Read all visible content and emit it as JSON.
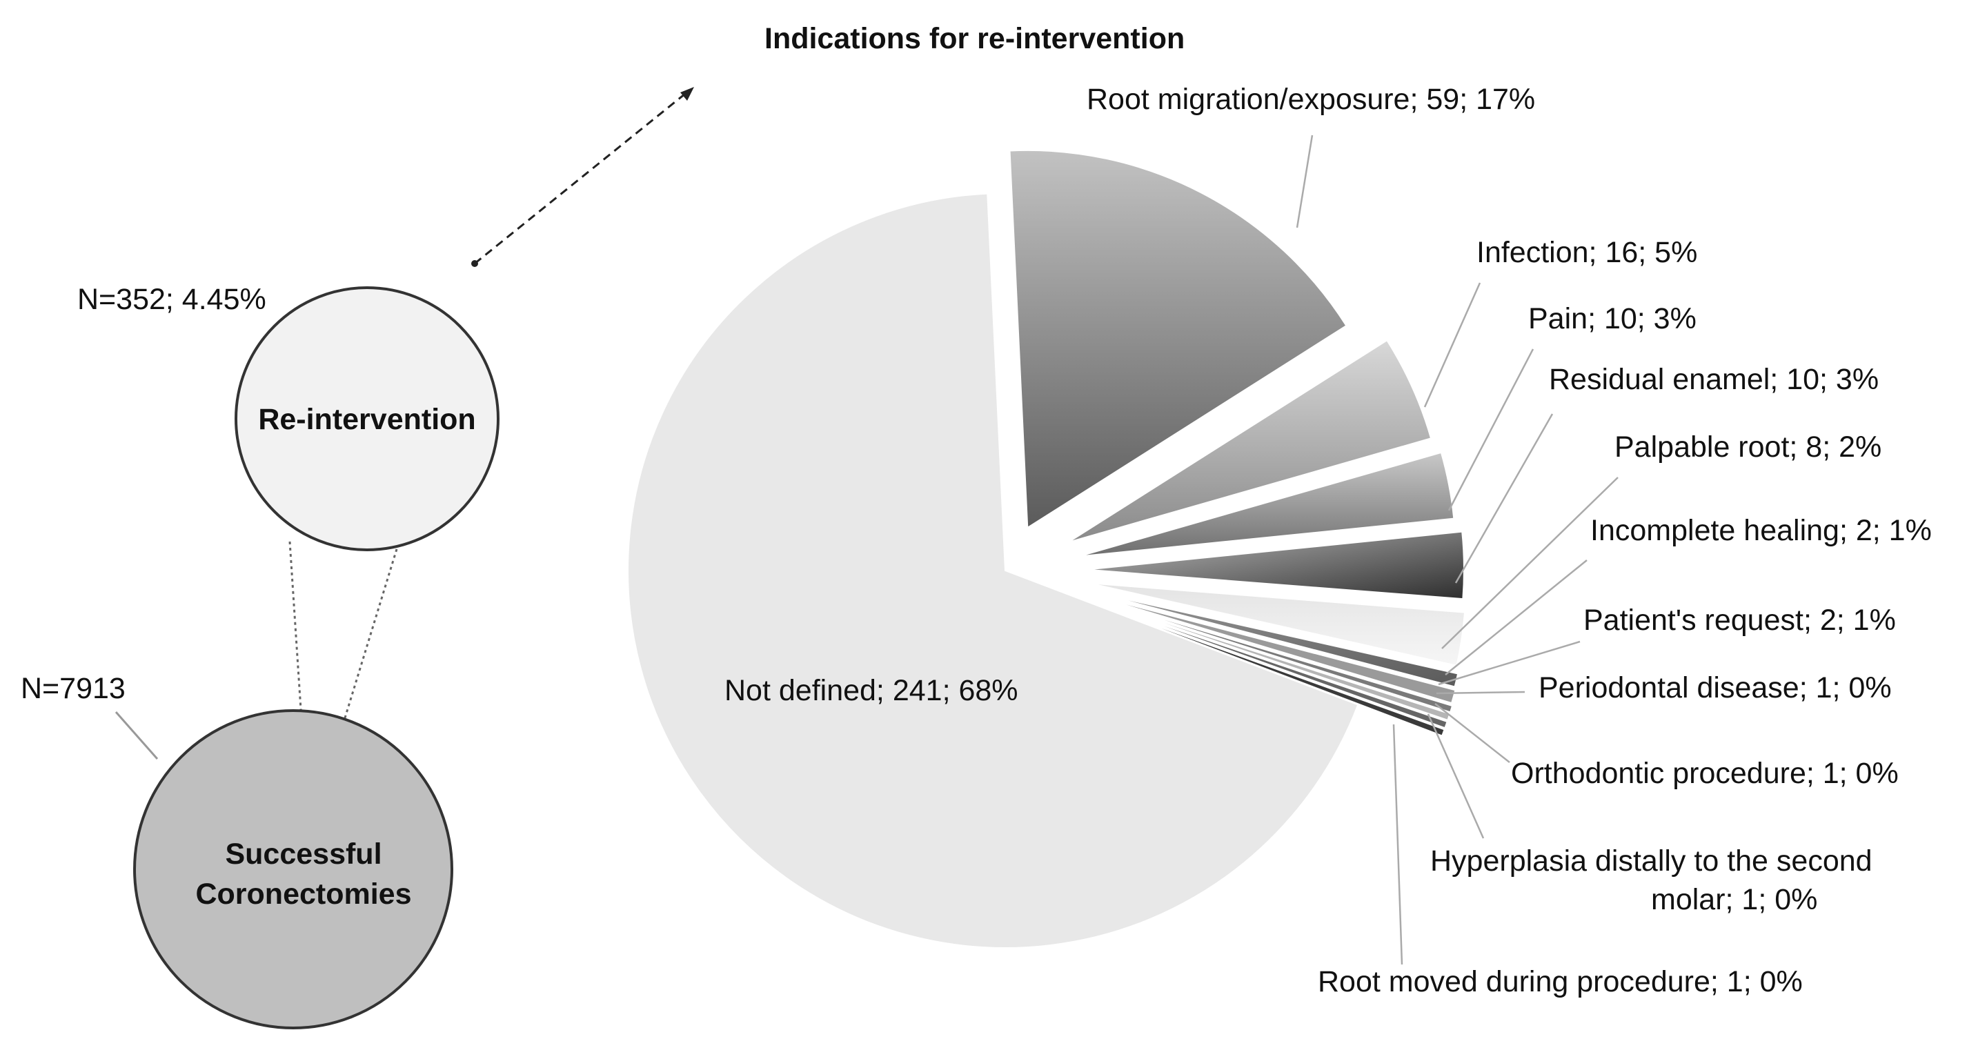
{
  "chart_data": {
    "type": "pie",
    "title": "Indications for re-intervention",
    "slices": [
      {
        "label": "Root migration/exposure; 59; 17%",
        "value": 59,
        "exploded": true
      },
      {
        "label": "Infection; 16; 5%",
        "value": 16,
        "exploded": true
      },
      {
        "label": "Pain; 10; 3%",
        "value": 10,
        "exploded": true
      },
      {
        "label": "Residual enamel; 10; 3%",
        "value": 10,
        "exploded": true
      },
      {
        "label": "Palpable root; 8; 2%",
        "value": 8,
        "exploded": true
      },
      {
        "label": "Incomplete healing; 2; 1%",
        "value": 2,
        "exploded": true
      },
      {
        "label": "Patient's request; 2; 1%",
        "value": 2,
        "exploded": true
      },
      {
        "label": "Periodontal disease; 1; 0%",
        "value": 1,
        "exploded": true
      },
      {
        "label": "Orthodontic procedure; 1; 0%",
        "value": 1,
        "exploded": true
      },
      {
        "label": "Hyperplasia distally to the second molar; 1; 0%",
        "label_lines": [
          "Hyperplasia distally to the second",
          "molar; 1; 0%"
        ],
        "value": 1,
        "exploded": true
      },
      {
        "label": "Root moved during procedure; 1; 0%",
        "value": 1,
        "exploded": true
      },
      {
        "label": "Not defined; 241; 68%",
        "value": 241,
        "exploded": false
      }
    ],
    "total": 352
  },
  "left_diagram": {
    "small_circle_label": "Re-intervention",
    "small_circle_count": "N=352; 4.45%",
    "big_circle_label_line1": "Successful",
    "big_circle_label_line2": "Coronectomies",
    "big_circle_count": "N=7913"
  }
}
